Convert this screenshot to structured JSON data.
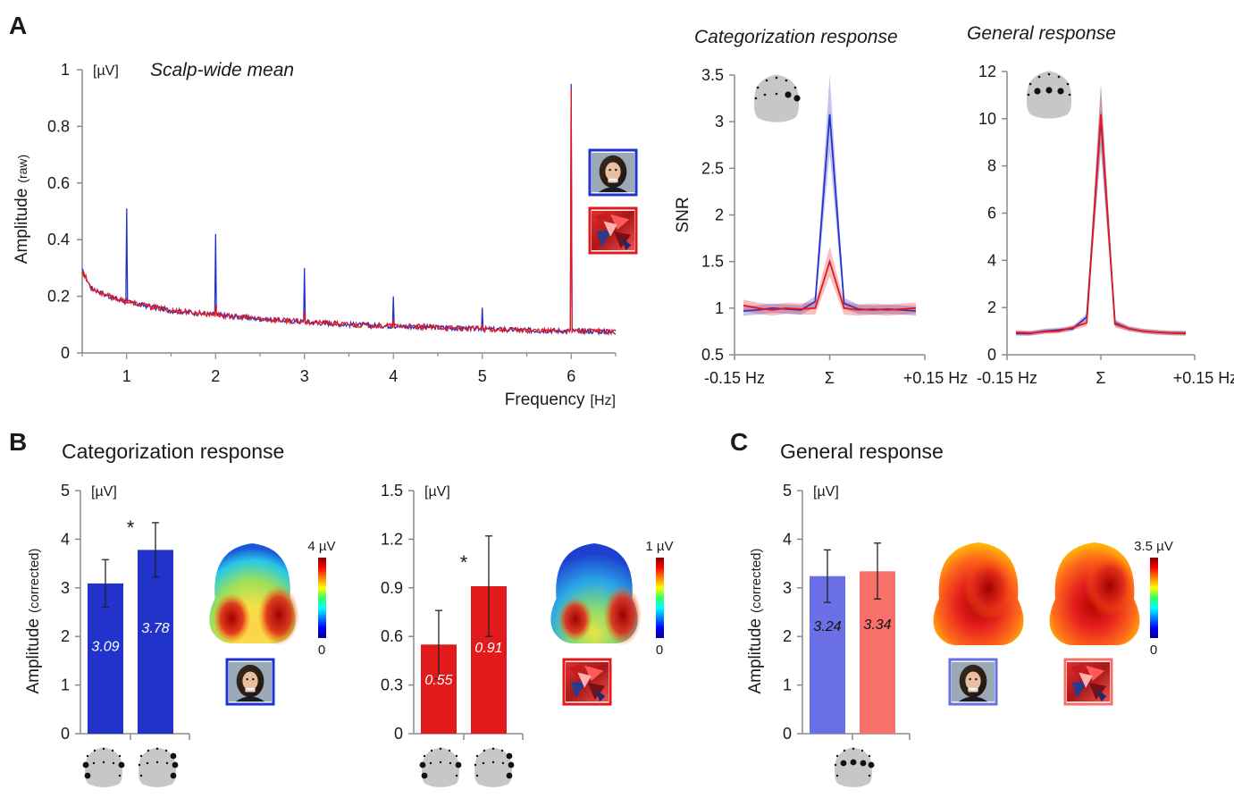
{
  "panels": {
    "a": "A",
    "b": "B",
    "c": "C"
  },
  "colors": {
    "blue": "#2233cc",
    "red": "#e31a1c",
    "blue_light": "#6b6fe6",
    "red_light": "#f9706a",
    "axis": "#8a8a8a"
  },
  "icons": [
    "face-photo-icon",
    "scrambled-face-icon",
    "scalp-map-icon",
    "electrode-layout-icon"
  ],
  "chart_data": [
    {
      "type": "line",
      "id": "spectrum",
      "title": "Scalp-wide mean",
      "unit": "[µV]",
      "ylabel_main": "Amplitude",
      "ylabel_sub": "(raw)",
      "xlabel_main": "Frequency",
      "xlabel_unit": "[Hz]",
      "xlim": [
        0.5,
        6.5
      ],
      "ylim": [
        0,
        1
      ],
      "xticks": [
        1,
        2,
        3,
        4,
        5,
        6
      ],
      "yticks": [
        0,
        0.2,
        0.4,
        0.6,
        0.8,
        1
      ],
      "ytick_labels": [
        "0",
        "0.2",
        "0.4",
        "0.6",
        "0.8",
        "1"
      ],
      "baseline": [
        [
          0.5,
          0.29
        ],
        [
          0.6,
          0.23
        ],
        [
          0.8,
          0.2
        ],
        [
          1,
          0.18
        ],
        [
          1.5,
          0.15
        ],
        [
          2,
          0.135
        ],
        [
          2.5,
          0.12
        ],
        [
          3,
          0.11
        ],
        [
          3.5,
          0.1
        ],
        [
          4,
          0.095
        ],
        [
          4.5,
          0.09
        ],
        [
          5,
          0.085
        ],
        [
          5.5,
          0.08
        ],
        [
          6,
          0.078
        ],
        [
          6.5,
          0.075
        ]
      ],
      "peaks": {
        "blue": [
          [
            1,
            0.51
          ],
          [
            2,
            0.42
          ],
          [
            3,
            0.3
          ],
          [
            4,
            0.2
          ],
          [
            5,
            0.16
          ],
          [
            6,
            0.95
          ]
        ],
        "red": [
          [
            1,
            0.19
          ],
          [
            2,
            0.17
          ],
          [
            3,
            0.15
          ],
          [
            4,
            0.12
          ],
          [
            5,
            0.1
          ],
          [
            6,
            0.93
          ]
        ]
      }
    },
    {
      "type": "line",
      "id": "snr-categorization",
      "title": "Categorization response",
      "ylabel": "SNR",
      "x_tick_labels": [
        "-0.15 Hz",
        "Σ",
        "+0.15 Hz"
      ],
      "ylim": [
        0.5,
        3.5
      ],
      "yticks": [
        0.5,
        1,
        1.5,
        2,
        2.5,
        3,
        3.5
      ],
      "ytick_labels": [
        "0.5",
        "1",
        "1.5",
        "2",
        "2.5",
        "3",
        "3.5"
      ],
      "series": [
        {
          "color": "blue",
          "values": [
            0.97,
            0.98,
            1.0,
            0.99,
            0.98,
            1.07,
            3.08,
            1.05,
            0.99,
            0.98,
            0.99,
            0.98,
            0.97
          ],
          "err": [
            0.05,
            0.05,
            0.05,
            0.05,
            0.05,
            0.06,
            0.42,
            0.06,
            0.05,
            0.05,
            0.05,
            0.05,
            0.05
          ]
        },
        {
          "color": "red",
          "values": [
            1.03,
            1.0,
            0.98,
            1.0,
            0.99,
            1.0,
            1.5,
            1.0,
            0.98,
            0.99,
            0.98,
            0.99,
            1.0
          ],
          "err": [
            0.06,
            0.06,
            0.06,
            0.06,
            0.06,
            0.07,
            0.16,
            0.07,
            0.06,
            0.06,
            0.06,
            0.06,
            0.06
          ]
        }
      ]
    },
    {
      "type": "line",
      "id": "snr-general",
      "title": "General response",
      "x_tick_labels": [
        "-0.15 Hz",
        "Σ",
        "+0.15 Hz"
      ],
      "ylim": [
        0,
        12
      ],
      "yticks": [
        0,
        2,
        4,
        6,
        8,
        10,
        12
      ],
      "ytick_labels": [
        "0",
        "2",
        "4",
        "6",
        "8",
        "10",
        "12"
      ],
      "series": [
        {
          "color": "blue",
          "values": [
            0.9,
            0.9,
            1.0,
            1.05,
            1.1,
            1.6,
            10.0,
            1.35,
            1.1,
            1.0,
            0.95,
            0.92,
            0.92
          ],
          "err": [
            0.1,
            0.1,
            0.1,
            0.1,
            0.1,
            0.15,
            1.4,
            0.15,
            0.1,
            0.1,
            0.1,
            0.1,
            0.1
          ]
        },
        {
          "color": "red",
          "values": [
            0.95,
            0.92,
            0.98,
            1.0,
            1.15,
            1.35,
            10.2,
            1.3,
            1.1,
            1.0,
            0.95,
            0.92,
            0.9
          ],
          "err": [
            0.1,
            0.1,
            0.1,
            0.1,
            0.1,
            0.15,
            1.3,
            0.15,
            0.1,
            0.1,
            0.1,
            0.1,
            0.1
          ]
        }
      ]
    },
    {
      "type": "bar",
      "id": "bars-categorization-faces",
      "title": "Categorization response",
      "unit": "[µV]",
      "ylabel_main": "Amplitude",
      "ylabel_sub": "(corrected)",
      "ylim": [
        0,
        5
      ],
      "yticks": [
        0,
        1,
        2,
        3,
        4,
        5
      ],
      "ytick_labels": [
        "0",
        "1",
        "2",
        "3",
        "4",
        "5"
      ],
      "values": [
        3.09,
        3.78
      ],
      "value_labels": [
        "3.09",
        "3.78"
      ],
      "err": [
        [
          2.6,
          3.58
        ],
        [
          3.22,
          4.34
        ]
      ],
      "color": "blue",
      "significance": "*",
      "scalp_max": "4 µV",
      "scalp_min": "0"
    },
    {
      "type": "bar",
      "id": "bars-categorization-scrambled",
      "unit": "[µV]",
      "ylim": [
        0,
        1.5
      ],
      "yticks": [
        0,
        0.3,
        0.6,
        0.9,
        1.2,
        1.5
      ],
      "ytick_labels": [
        "0",
        "0.3",
        "0.6",
        "0.9",
        "1.2",
        "1.5"
      ],
      "values": [
        0.55,
        0.91
      ],
      "value_labels": [
        "0.55",
        "0.91"
      ],
      "err": [
        [
          0.34,
          0.76
        ],
        [
          0.6,
          1.22
        ]
      ],
      "color": "red",
      "significance": "*",
      "scalp_max": "1 µV",
      "scalp_min": "0"
    },
    {
      "type": "bar",
      "id": "bars-general",
      "title": "General response",
      "unit": "[µV]",
      "ylabel_main": "Amplitude",
      "ylabel_sub": "(corrected)",
      "ylim": [
        0,
        5
      ],
      "yticks": [
        0,
        1,
        2,
        3,
        4,
        5
      ],
      "ytick_labels": [
        "0",
        "1",
        "2",
        "3",
        "4",
        "5"
      ],
      "values": [
        3.24,
        3.34
      ],
      "value_labels": [
        "3.24",
        "3.34"
      ],
      "err": [
        [
          2.7,
          3.78
        ],
        [
          2.77,
          3.92
        ]
      ],
      "colors": [
        "blue_light",
        "red_light"
      ],
      "scalp_max": "3.5 µV",
      "scalp_min": "0"
    }
  ]
}
